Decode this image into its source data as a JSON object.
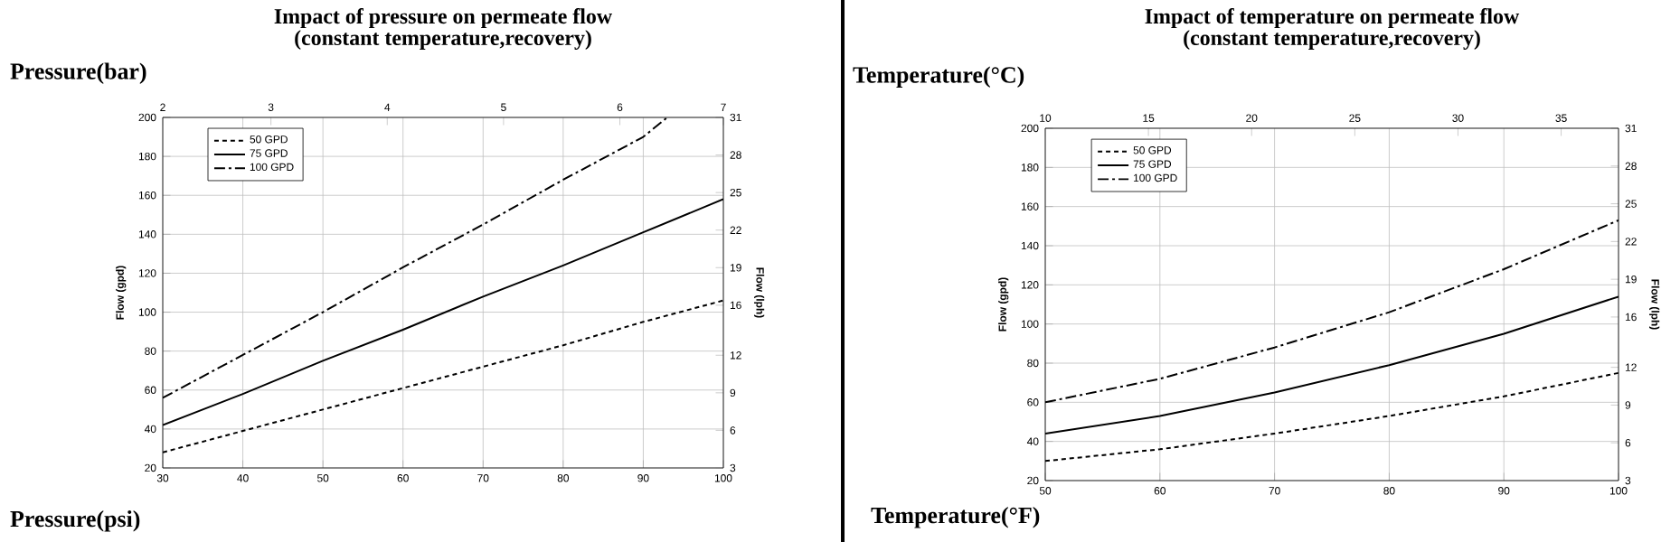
{
  "chart_data": [
    {
      "type": "line",
      "title": "Impact of pressure on permeate flow",
      "subtitle": "(constant temperature,recovery)",
      "xlabel": "Pressure(psi)",
      "x2label": "Pressure(bar)",
      "ylabel": "Flow (gpd)",
      "y2label": "Flow (lph)",
      "xlim": [
        30,
        100
      ],
      "xticks": [
        30,
        40,
        50,
        60,
        70,
        80,
        90,
        100
      ],
      "ylim": [
        20,
        200
      ],
      "yticks": [
        20,
        40,
        60,
        80,
        100,
        120,
        140,
        160,
        180,
        200
      ],
      "x2lim": [
        2.07,
        6.89
      ],
      "x2ticks": [
        {
          "value": 2.07,
          "label": "2"
        },
        3,
        4,
        5,
        6,
        {
          "value": 6.89,
          "label": "7"
        }
      ],
      "y2lim": [
        3,
        31
      ],
      "y2ticks": [
        3,
        6,
        9,
        12,
        16,
        19,
        22,
        25,
        28,
        31
      ],
      "grid": true,
      "legend": "top left",
      "series": [
        {
          "name": "50 GPD",
          "color": "#000000",
          "line_style": "dotted",
          "x": [
            30,
            40,
            50,
            60,
            70,
            80,
            90,
            100
          ],
          "values": [
            28,
            39,
            50,
            61,
            72,
            83,
            95,
            106
          ]
        },
        {
          "name": "75 GPD",
          "color": "#000000",
          "line_style": "solid",
          "x": [
            30,
            40,
            50,
            60,
            70,
            80,
            90,
            100
          ],
          "values": [
            42,
            58,
            75,
            91,
            108,
            124,
            141,
            158
          ]
        },
        {
          "name": "100 GPD",
          "color": "#000000",
          "line_style": "dashed",
          "x": [
            30,
            40,
            50,
            60,
            70,
            80,
            90,
            93
          ],
          "values": [
            56,
            78,
            100,
            123,
            145,
            168,
            190,
            200
          ]
        }
      ]
    },
    {
      "type": "line",
      "title": "Impact of temperature on permeate flow",
      "subtitle": "(constant temperature,recovery)",
      "xlabel": "Temperature(°F)",
      "x2label": "Temperature(°C)",
      "ylabel": "Flow (gpd)",
      "y2label": "Flow (lph)",
      "xlim": [
        50,
        100
      ],
      "xticks": [
        50,
        60,
        70,
        80,
        90,
        100
      ],
      "ylim": [
        20,
        200
      ],
      "yticks": [
        20,
        40,
        60,
        80,
        100,
        120,
        140,
        160,
        180,
        200
      ],
      "x2lim": [
        10,
        37.78
      ],
      "x2ticks": [
        10,
        15,
        20,
        25,
        30,
        35
      ],
      "y2lim": [
        3,
        31
      ],
      "y2ticks": [
        3,
        6,
        9,
        12,
        16,
        19,
        22,
        25,
        28,
        31
      ],
      "grid": true,
      "legend": "top left",
      "series": [
        {
          "name": "50 GPD",
          "color": "#000000",
          "line_style": "dotted",
          "x": [
            50,
            60,
            70,
            80,
            90,
            100
          ],
          "values": [
            30,
            36,
            44,
            53,
            63,
            75
          ]
        },
        {
          "name": "75 GPD",
          "color": "#000000",
          "line_style": "solid",
          "x": [
            50,
            60,
            70,
            80,
            90,
            100
          ],
          "values": [
            44,
            53,
            65,
            79,
            95,
            114
          ]
        },
        {
          "name": "100 GPD",
          "color": "#000000",
          "line_style": "dashed",
          "x": [
            50,
            60,
            70,
            80,
            90,
            100
          ],
          "values": [
            60,
            72,
            88,
            106,
            128,
            153
          ]
        }
      ]
    }
  ]
}
